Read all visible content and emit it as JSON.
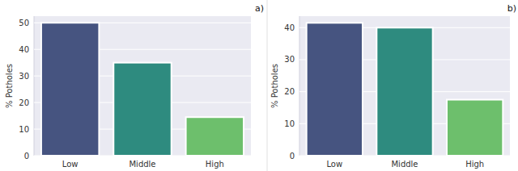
{
  "chart_data": [
    {
      "type": "bar",
      "title": "a)",
      "y_label": "% Potholes",
      "categories": [
        "Low",
        "Middle",
        "High"
      ],
      "values": [
        50,
        35,
        14.5
      ],
      "colors": [
        "#465480",
        "#2e8b7f",
        "#6dbf6c"
      ],
      "ylim": [
        0,
        52.5
      ],
      "yticks": [
        0,
        10,
        20,
        30,
        40,
        50
      ],
      "grid": true
    },
    {
      "type": "bar",
      "title": "b)",
      "y_label": "% Potholes",
      "categories": [
        "Low",
        "Middle",
        "High"
      ],
      "values": [
        41.5,
        40,
        17.5
      ],
      "colors": [
        "#465480",
        "#2e8b7f",
        "#6dbf6c"
      ],
      "ylim": [
        0,
        43.6
      ],
      "yticks": [
        0,
        10,
        20,
        30,
        40
      ],
      "grid": true
    }
  ]
}
